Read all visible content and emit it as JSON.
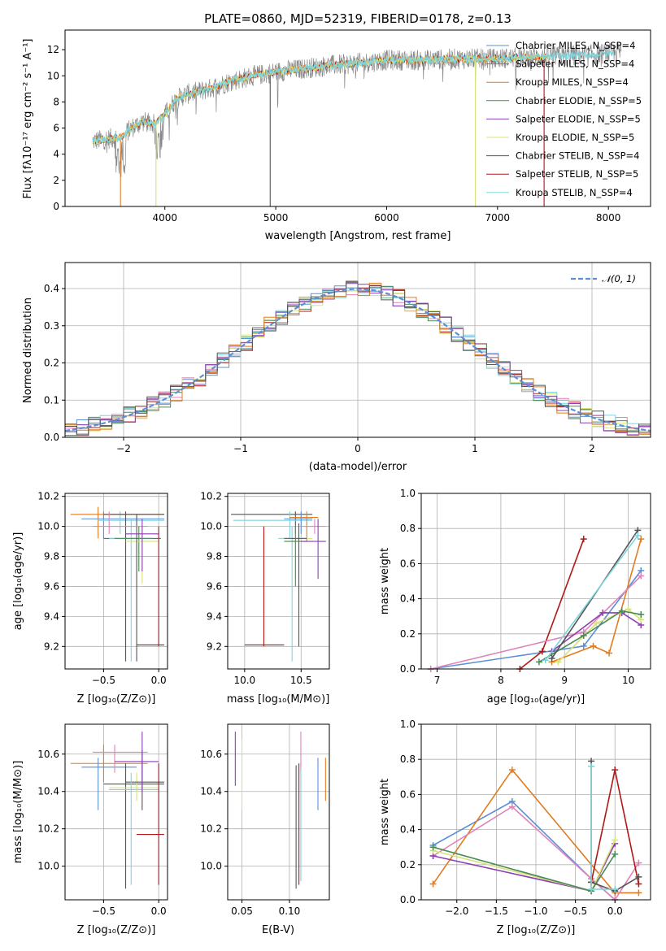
{
  "figure": {
    "title": "PLATE=0860, MJD=52319, FIBERID=0178, z=0.13"
  },
  "colors": {
    "Chabrier MILES": "#5b8fd6",
    "Salpeter MILES": "#7f7f7f",
    "Kroupa MILES": "#e17c20",
    "Chabrier ELODIE": "#4a8a57",
    "Salpeter ELODIE": "#8c3fb4",
    "Kroupa ELODIE": "#d7e27a",
    "Chabrier STELIB": "#555555",
    "Salpeter STELIB": "#b01818",
    "Kroupa STELIB": "#7fd4dc",
    "pink": "#e083b8"
  },
  "chart_data": [
    {
      "id": "spectrum",
      "type": "line",
      "title": "PLATE=0860, MJD=52319, FIBERID=0178, z=0.13",
      "xlabel": "wavelength [Angstrom, rest frame]",
      "ylabel": "Flux [fλ10⁻¹⁷ erg cm⁻² s⁻¹ A⁻¹]",
      "xlim": [
        3100,
        8380
      ],
      "ylim": [
        0,
        13.5
      ],
      "xticks": [
        4000,
        5000,
        6000,
        7000,
        8000
      ],
      "yticks": [
        0,
        2,
        4,
        6,
        8,
        10,
        12
      ],
      "legend_position": "top-right",
      "legend": [
        "Chabrier MILES, N_SSP=4",
        "Salpeter MILES, N_SSP=4",
        "Kroupa MILES, N_SSP=4",
        "Chabrier ELODIE, N_SSP=5",
        "Salpeter ELODIE, N_SSP=5",
        "Kroupa ELODIE, N_SSP=5",
        "Chabrier STELIB, N_SSP=4",
        "Salpeter STELIB, N_SSP=5",
        "Kroupa STELIB, N_SSP=4"
      ],
      "continuum": [
        [
          3350,
          5.0
        ],
        [
          3600,
          5.3
        ],
        [
          3700,
          6.0
        ],
        [
          3800,
          6.5
        ],
        [
          3900,
          6.3
        ],
        [
          4000,
          7.0
        ],
        [
          4100,
          8.2
        ],
        [
          4200,
          8.6
        ],
        [
          4400,
          9.0
        ],
        [
          4600,
          9.6
        ],
        [
          4800,
          10.0
        ],
        [
          5000,
          10.3
        ],
        [
          5200,
          10.5
        ],
        [
          5500,
          10.8
        ],
        [
          5800,
          11.0
        ],
        [
          6000,
          11.2
        ],
        [
          6300,
          11.2
        ],
        [
          6600,
          11.3
        ],
        [
          6900,
          11.3
        ],
        [
          7200,
          11.4
        ],
        [
          7500,
          11.5
        ],
        [
          7800,
          11.6
        ],
        [
          8000,
          11.7
        ],
        [
          8100,
          11.8
        ]
      ]
    },
    {
      "id": "residuals",
      "type": "line",
      "xlabel": "(data-model)/error",
      "ylabel": "Normed distribution",
      "xlim": [
        -2.5,
        2.5
      ],
      "ylim": [
        0,
        0.47
      ],
      "xticks": [
        -2,
        -1,
        0,
        1,
        2
      ],
      "yticks": [
        0.0,
        0.1,
        0.2,
        0.3,
        0.4
      ],
      "legend_position": "top-right",
      "legend": [
        "𝒩(0, 1)"
      ],
      "gaussian": {
        "mean": 0,
        "sigma": 1
      }
    },
    {
      "id": "age-vs-Z",
      "type": "scatter",
      "xlabel": "Z [log₁₀(Z/Z⊙)]",
      "ylabel": "age  [log₁₀(age/yr)]",
      "xlim": [
        -0.85,
        0.08
      ],
      "ylim": [
        9.05,
        10.22
      ],
      "xticks": [
        -0.5,
        0.0
      ],
      "yticks": [
        9.2,
        9.4,
        9.6,
        9.8,
        10.0,
        10.2
      ]
    },
    {
      "id": "age-vs-mass",
      "type": "scatter",
      "xlabel": "mass [log₁₀(M/M⊙)]",
      "xlim": [
        9.85,
        10.75
      ],
      "ylim": [
        9.05,
        10.22
      ],
      "xticks": [
        10.0,
        10.5
      ],
      "yticks": [
        9.2,
        9.4,
        9.6,
        9.8,
        10.0,
        10.2
      ]
    },
    {
      "id": "weight-vs-age",
      "type": "line",
      "xlabel": "age  [log₁₀(age/yr)]",
      "ylabel": "mass weight",
      "xlim": [
        6.75,
        10.35
      ],
      "ylim": [
        0,
        1.0
      ],
      "xticks": [
        7,
        8,
        9,
        10
      ],
      "yticks": [
        0.0,
        0.2,
        0.4,
        0.6,
        0.8,
        1.0
      ],
      "series": [
        {
          "color_key": "Chabrier MILES",
          "x": [
            6.9,
            9.3,
            10.2
          ],
          "y": [
            0.0,
            0.13,
            0.56
          ]
        },
        {
          "color_key": "Kroupa MILES",
          "x": [
            8.8,
            9.45,
            9.7,
            10.2
          ],
          "y": [
            0.04,
            0.13,
            0.09,
            0.74
          ]
        },
        {
          "color_key": "Salpeter STELIB",
          "x": [
            8.3,
            8.65,
            9.3
          ],
          "y": [
            0.0,
            0.1,
            0.74
          ]
        },
        {
          "color_key": "pink",
          "x": [
            6.9,
            9.3,
            10.2
          ],
          "y": [
            0.0,
            0.21,
            0.53
          ]
        },
        {
          "color_key": "Salpeter ELODIE",
          "x": [
            8.8,
            9.6,
            9.9,
            10.2
          ],
          "y": [
            0.1,
            0.32,
            0.32,
            0.25
          ]
        },
        {
          "color_key": "Kroupa ELODIE",
          "x": [
            8.9,
            9.5,
            10.0,
            10.2
          ],
          "y": [
            0.04,
            0.26,
            0.34,
            0.28
          ]
        },
        {
          "color_key": "Chabrier ELODIE",
          "x": [
            8.6,
            9.3,
            9.9,
            10.2
          ],
          "y": [
            0.04,
            0.19,
            0.33,
            0.31
          ]
        },
        {
          "color_key": "Chabrier STELIB",
          "x": [
            8.8,
            10.15
          ],
          "y": [
            0.06,
            0.79
          ]
        },
        {
          "color_key": "Kroupa STELIB",
          "x": [
            8.7,
            10.15
          ],
          "y": [
            0.05,
            0.76
          ]
        }
      ]
    },
    {
      "id": "mass-vs-Z",
      "type": "scatter",
      "xlabel": "Z [log₁₀(Z/Z⊙)]",
      "ylabel": "mass [log₁₀(M/M⊙)]",
      "xlim": [
        -0.85,
        0.08
      ],
      "ylim": [
        9.82,
        10.76
      ],
      "xticks": [
        -0.5,
        0.0
      ],
      "yticks": [
        10.0,
        10.2,
        10.4,
        10.6
      ]
    },
    {
      "id": "mass-vs-EBV",
      "type": "scatter",
      "xlabel": "E(B-V)",
      "xlim": [
        0.035,
        0.142
      ],
      "ylim": [
        9.82,
        10.76
      ],
      "xticks": [
        0.05,
        0.1
      ],
      "yticks": [
        10.0,
        10.2,
        10.4,
        10.6
      ]
    },
    {
      "id": "weight-vs-Z",
      "type": "line",
      "xlabel": "Z [log₁₀(Z/Z⊙)]",
      "ylabel": "mass weight",
      "xlim": [
        -2.45,
        0.45
      ],
      "ylim": [
        0,
        1.0
      ],
      "xticks": [
        -2.0,
        -1.5,
        -1.0,
        -0.5,
        0.0
      ],
      "yticks": [
        0.0,
        0.2,
        0.4,
        0.6,
        0.8,
        1.0
      ],
      "series": [
        {
          "color_key": "Chabrier MILES",
          "x": [
            -2.3,
            -1.3,
            -0.3,
            0.0
          ],
          "y": [
            0.31,
            0.56,
            0.12,
            0.0
          ]
        },
        {
          "color_key": "Kroupa MILES",
          "x": [
            -2.3,
            -1.3,
            0.0,
            0.3
          ],
          "y": [
            0.09,
            0.74,
            0.04,
            0.04
          ]
        },
        {
          "color_key": "pink",
          "x": [
            -2.3,
            -1.3,
            -0.3,
            0.0,
            0.3
          ],
          "y": [
            0.25,
            0.53,
            0.12,
            0.0,
            0.21
          ]
        },
        {
          "color_key": "Salpeter ELODIE",
          "x": [
            -2.3,
            -0.3,
            0.0
          ],
          "y": [
            0.25,
            0.05,
            0.32
          ]
        },
        {
          "color_key": "Kroupa ELODIE",
          "x": [
            -2.3,
            -0.3,
            0.0
          ],
          "y": [
            0.28,
            0.05,
            0.34
          ]
        },
        {
          "color_key": "Chabrier ELODIE",
          "x": [
            -2.3,
            -0.3,
            0.0
          ],
          "y": [
            0.3,
            0.05,
            0.26
          ]
        },
        {
          "color_key": "Salpeter STELIB",
          "x": [
            -0.3,
            0.0,
            0.3
          ],
          "y": [
            0.1,
            0.74,
            0.09
          ]
        },
        {
          "color_key": "Chabrier STELIB",
          "x": [
            -0.3,
            -0.3,
            0.0,
            0.3
          ],
          "y": [
            0.79,
            0.1,
            0.05,
            0.13
          ]
        },
        {
          "color_key": "Kroupa STELIB",
          "x": [
            -0.3,
            -0.3,
            0.0
          ],
          "y": [
            0.76,
            0.06,
            0.06
          ]
        }
      ]
    }
  ]
}
